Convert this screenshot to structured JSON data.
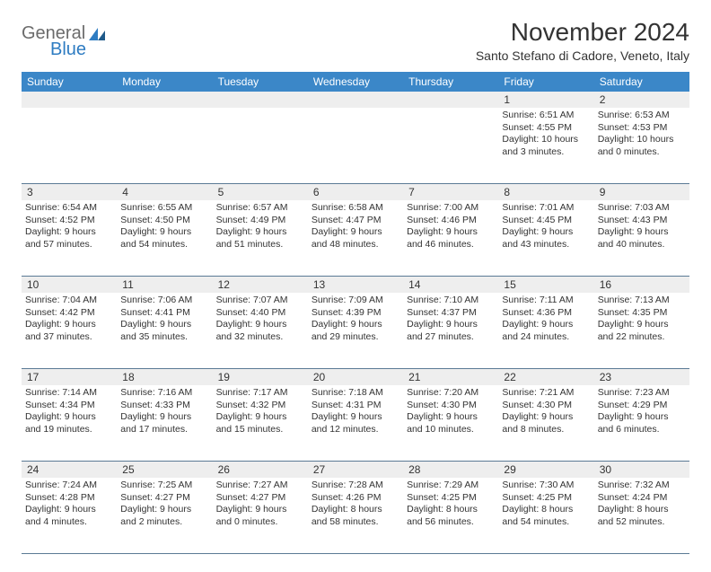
{
  "header": {
    "logo_general": "General",
    "logo_blue": "Blue",
    "month_title": "November 2024",
    "location": "Santo Stefano di Cadore, Veneto, Italy"
  },
  "colors": {
    "header_bg": "#3b87c8",
    "header_text": "#ffffff",
    "daynum_bg": "#eeeeee",
    "border": "#5b7a95",
    "logo_gray": "#6b6b6b",
    "logo_blue": "#2e7cc2"
  },
  "days_of_week": [
    "Sunday",
    "Monday",
    "Tuesday",
    "Wednesday",
    "Thursday",
    "Friday",
    "Saturday"
  ],
  "weeks": [
    [
      {
        "num": "",
        "sunrise": "",
        "sunset": "",
        "daylight": ""
      },
      {
        "num": "",
        "sunrise": "",
        "sunset": "",
        "daylight": ""
      },
      {
        "num": "",
        "sunrise": "",
        "sunset": "",
        "daylight": ""
      },
      {
        "num": "",
        "sunrise": "",
        "sunset": "",
        "daylight": ""
      },
      {
        "num": "",
        "sunrise": "",
        "sunset": "",
        "daylight": ""
      },
      {
        "num": "1",
        "sunrise": "Sunrise: 6:51 AM",
        "sunset": "Sunset: 4:55 PM",
        "daylight": "Daylight: 10 hours and 3 minutes."
      },
      {
        "num": "2",
        "sunrise": "Sunrise: 6:53 AM",
        "sunset": "Sunset: 4:53 PM",
        "daylight": "Daylight: 10 hours and 0 minutes."
      }
    ],
    [
      {
        "num": "3",
        "sunrise": "Sunrise: 6:54 AM",
        "sunset": "Sunset: 4:52 PM",
        "daylight": "Daylight: 9 hours and 57 minutes."
      },
      {
        "num": "4",
        "sunrise": "Sunrise: 6:55 AM",
        "sunset": "Sunset: 4:50 PM",
        "daylight": "Daylight: 9 hours and 54 minutes."
      },
      {
        "num": "5",
        "sunrise": "Sunrise: 6:57 AM",
        "sunset": "Sunset: 4:49 PM",
        "daylight": "Daylight: 9 hours and 51 minutes."
      },
      {
        "num": "6",
        "sunrise": "Sunrise: 6:58 AM",
        "sunset": "Sunset: 4:47 PM",
        "daylight": "Daylight: 9 hours and 48 minutes."
      },
      {
        "num": "7",
        "sunrise": "Sunrise: 7:00 AM",
        "sunset": "Sunset: 4:46 PM",
        "daylight": "Daylight: 9 hours and 46 minutes."
      },
      {
        "num": "8",
        "sunrise": "Sunrise: 7:01 AM",
        "sunset": "Sunset: 4:45 PM",
        "daylight": "Daylight: 9 hours and 43 minutes."
      },
      {
        "num": "9",
        "sunrise": "Sunrise: 7:03 AM",
        "sunset": "Sunset: 4:43 PM",
        "daylight": "Daylight: 9 hours and 40 minutes."
      }
    ],
    [
      {
        "num": "10",
        "sunrise": "Sunrise: 7:04 AM",
        "sunset": "Sunset: 4:42 PM",
        "daylight": "Daylight: 9 hours and 37 minutes."
      },
      {
        "num": "11",
        "sunrise": "Sunrise: 7:06 AM",
        "sunset": "Sunset: 4:41 PM",
        "daylight": "Daylight: 9 hours and 35 minutes."
      },
      {
        "num": "12",
        "sunrise": "Sunrise: 7:07 AM",
        "sunset": "Sunset: 4:40 PM",
        "daylight": "Daylight: 9 hours and 32 minutes."
      },
      {
        "num": "13",
        "sunrise": "Sunrise: 7:09 AM",
        "sunset": "Sunset: 4:39 PM",
        "daylight": "Daylight: 9 hours and 29 minutes."
      },
      {
        "num": "14",
        "sunrise": "Sunrise: 7:10 AM",
        "sunset": "Sunset: 4:37 PM",
        "daylight": "Daylight: 9 hours and 27 minutes."
      },
      {
        "num": "15",
        "sunrise": "Sunrise: 7:11 AM",
        "sunset": "Sunset: 4:36 PM",
        "daylight": "Daylight: 9 hours and 24 minutes."
      },
      {
        "num": "16",
        "sunrise": "Sunrise: 7:13 AM",
        "sunset": "Sunset: 4:35 PM",
        "daylight": "Daylight: 9 hours and 22 minutes."
      }
    ],
    [
      {
        "num": "17",
        "sunrise": "Sunrise: 7:14 AM",
        "sunset": "Sunset: 4:34 PM",
        "daylight": "Daylight: 9 hours and 19 minutes."
      },
      {
        "num": "18",
        "sunrise": "Sunrise: 7:16 AM",
        "sunset": "Sunset: 4:33 PM",
        "daylight": "Daylight: 9 hours and 17 minutes."
      },
      {
        "num": "19",
        "sunrise": "Sunrise: 7:17 AM",
        "sunset": "Sunset: 4:32 PM",
        "daylight": "Daylight: 9 hours and 15 minutes."
      },
      {
        "num": "20",
        "sunrise": "Sunrise: 7:18 AM",
        "sunset": "Sunset: 4:31 PM",
        "daylight": "Daylight: 9 hours and 12 minutes."
      },
      {
        "num": "21",
        "sunrise": "Sunrise: 7:20 AM",
        "sunset": "Sunset: 4:30 PM",
        "daylight": "Daylight: 9 hours and 10 minutes."
      },
      {
        "num": "22",
        "sunrise": "Sunrise: 7:21 AM",
        "sunset": "Sunset: 4:30 PM",
        "daylight": "Daylight: 9 hours and 8 minutes."
      },
      {
        "num": "23",
        "sunrise": "Sunrise: 7:23 AM",
        "sunset": "Sunset: 4:29 PM",
        "daylight": "Daylight: 9 hours and 6 minutes."
      }
    ],
    [
      {
        "num": "24",
        "sunrise": "Sunrise: 7:24 AM",
        "sunset": "Sunset: 4:28 PM",
        "daylight": "Daylight: 9 hours and 4 minutes."
      },
      {
        "num": "25",
        "sunrise": "Sunrise: 7:25 AM",
        "sunset": "Sunset: 4:27 PM",
        "daylight": "Daylight: 9 hours and 2 minutes."
      },
      {
        "num": "26",
        "sunrise": "Sunrise: 7:27 AM",
        "sunset": "Sunset: 4:27 PM",
        "daylight": "Daylight: 9 hours and 0 minutes."
      },
      {
        "num": "27",
        "sunrise": "Sunrise: 7:28 AM",
        "sunset": "Sunset: 4:26 PM",
        "daylight": "Daylight: 8 hours and 58 minutes."
      },
      {
        "num": "28",
        "sunrise": "Sunrise: 7:29 AM",
        "sunset": "Sunset: 4:25 PM",
        "daylight": "Daylight: 8 hours and 56 minutes."
      },
      {
        "num": "29",
        "sunrise": "Sunrise: 7:30 AM",
        "sunset": "Sunset: 4:25 PM",
        "daylight": "Daylight: 8 hours and 54 minutes."
      },
      {
        "num": "30",
        "sunrise": "Sunrise: 7:32 AM",
        "sunset": "Sunset: 4:24 PM",
        "daylight": "Daylight: 8 hours and 52 minutes."
      }
    ]
  ]
}
